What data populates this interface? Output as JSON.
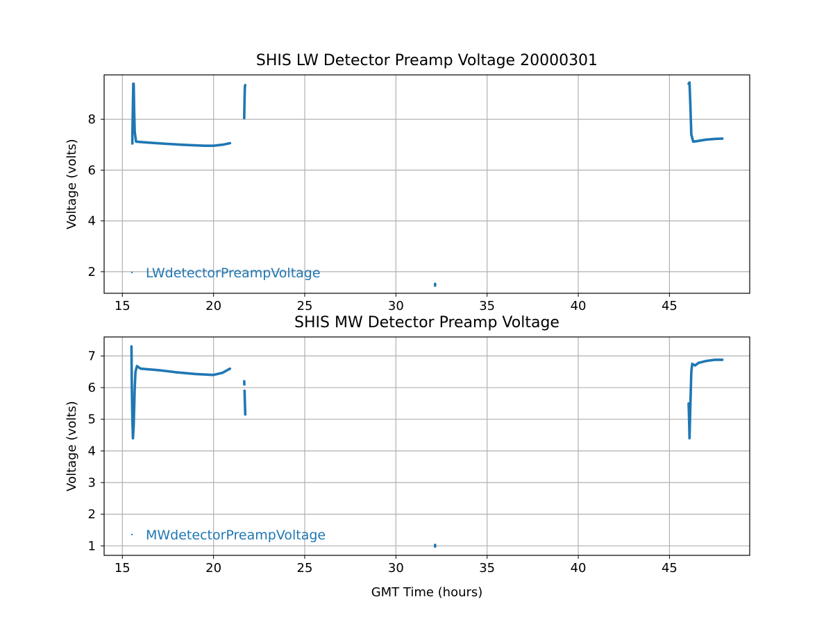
{
  "chart_data": [
    {
      "type": "scatter",
      "title": "SHIS LW Detector Preamp Voltage 20000301",
      "xlabel": "",
      "ylabel": "Voltage (volts)",
      "xlim": [
        14.0,
        49.4
      ],
      "ylim": [
        1.15,
        9.75
      ],
      "xticks": [
        15,
        20,
        25,
        30,
        35,
        40,
        45
      ],
      "yticks": [
        2,
        4,
        6,
        8
      ],
      "grid": true,
      "legend_position": "lower-left",
      "series_color": "#1f77b4",
      "series": [
        {
          "name": "LWdetectorPreampVoltage",
          "segments": [
            [
              [
                15.55,
                7.05
              ],
              [
                15.55,
                7.4
              ],
              [
                15.6,
                9.4
              ],
              [
                15.62,
                9.4
              ],
              [
                15.65,
                8.3
              ],
              [
                15.68,
                7.5
              ],
              [
                15.75,
                7.12
              ],
              [
                16.5,
                7.08
              ],
              [
                17.5,
                7.03
              ],
              [
                18.5,
                6.99
              ],
              [
                19.5,
                6.96
              ],
              [
                20.0,
                6.96
              ],
              [
                20.5,
                7.0
              ],
              [
                20.9,
                7.06
              ]
            ],
            [
              [
                21.68,
                8.05
              ],
              [
                21.7,
                8.8
              ],
              [
                21.72,
                9.3
              ],
              [
                21.74,
                9.35
              ]
            ],
            [
              [
                32.15,
                1.45
              ],
              [
                32.15,
                1.52
              ]
            ],
            [
              [
                46.05,
                9.4
              ],
              [
                46.1,
                9.45
              ],
              [
                46.15,
                8.5
              ],
              [
                46.2,
                7.4
              ],
              [
                46.3,
                7.12
              ],
              [
                46.6,
                7.15
              ],
              [
                47.0,
                7.2
              ],
              [
                47.5,
                7.23
              ],
              [
                47.9,
                7.24
              ]
            ]
          ]
        }
      ]
    },
    {
      "type": "scatter",
      "title": "SHIS MW Detector Preamp Voltage",
      "xlabel": "GMT Time (hours)",
      "ylabel": "Voltage (volts)",
      "xlim": [
        14.0,
        49.4
      ],
      "ylim": [
        0.7,
        7.6
      ],
      "xticks": [
        15,
        20,
        25,
        30,
        35,
        40,
        45
      ],
      "yticks": [
        1,
        2,
        3,
        4,
        5,
        6,
        7
      ],
      "grid": true,
      "legend_position": "lower-left",
      "series_color": "#1f77b4",
      "series": [
        {
          "name": "MWdetectorPreampVoltage",
          "segments": [
            [
              [
                15.5,
                7.3
              ],
              [
                15.52,
                6.0
              ],
              [
                15.55,
                5.0
              ],
              [
                15.58,
                4.4
              ],
              [
                15.62,
                4.8
              ],
              [
                15.68,
                6.0
              ],
              [
                15.72,
                6.5
              ],
              [
                15.8,
                6.68
              ],
              [
                16.0,
                6.6
              ],
              [
                17.0,
                6.55
              ],
              [
                18.0,
                6.48
              ],
              [
                19.0,
                6.43
              ],
              [
                20.0,
                6.4
              ],
              [
                20.5,
                6.47
              ],
              [
                20.9,
                6.6
              ]
            ],
            [
              [
                21.68,
                6.2
              ],
              [
                21.69,
                6.1
              ]
            ],
            [
              [
                21.7,
                5.9
              ],
              [
                21.72,
                5.5
              ],
              [
                21.74,
                5.15
              ]
            ],
            [
              [
                32.15,
                0.98
              ],
              [
                32.15,
                1.03
              ]
            ],
            [
              [
                46.05,
                5.5
              ],
              [
                46.08,
                4.9
              ],
              [
                46.1,
                4.4
              ],
              [
                46.15,
                5.5
              ],
              [
                46.2,
                6.5
              ],
              [
                46.25,
                6.75
              ],
              [
                46.4,
                6.7
              ],
              [
                46.6,
                6.78
              ],
              [
                47.0,
                6.84
              ],
              [
                47.5,
                6.88
              ],
              [
                47.9,
                6.88
              ]
            ]
          ]
        }
      ]
    }
  ]
}
